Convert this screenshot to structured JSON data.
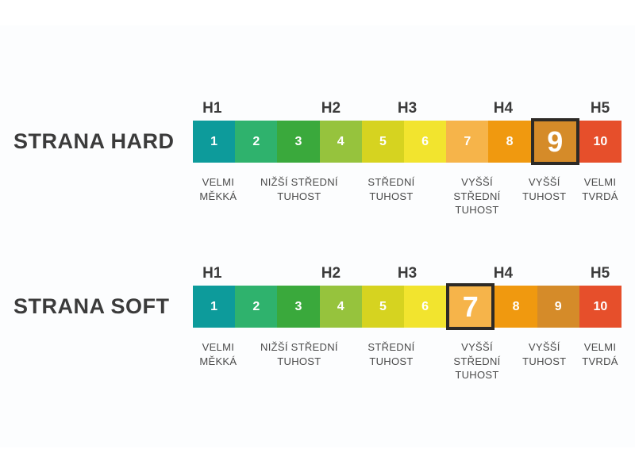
{
  "page": {
    "background": "#ffffff",
    "panel_background": "#fcfdfe"
  },
  "chart": {
    "type": "hardness-scale",
    "scale_values": [
      "1",
      "2",
      "3",
      "4",
      "5",
      "6",
      "7",
      "8",
      "9",
      "10"
    ],
    "cells": [
      {
        "value": "1",
        "color": "#0d9b9b"
      },
      {
        "value": "2",
        "color": "#2fb26d"
      },
      {
        "value": "3",
        "color": "#3aa93c"
      },
      {
        "value": "4",
        "color": "#96c33d"
      },
      {
        "value": "5",
        "color": "#d6d320"
      },
      {
        "value": "6",
        "color": "#f2e42e"
      },
      {
        "value": "7",
        "color": "#f6b44a"
      },
      {
        "value": "8",
        "color": "#f0990f"
      },
      {
        "value": "9",
        "color": "#d58b29"
      },
      {
        "value": "10",
        "color": "#e64f2b"
      }
    ],
    "h_labels": [
      "H1",
      "H2",
      "H3",
      "H4",
      "H5"
    ],
    "descriptions": [
      {
        "text": "VELMI\nMĚKKÁ"
      },
      {
        "text": "NIŽŠÍ STŘEDNÍ\nTUHOST"
      },
      {
        "text": "STŘEDNÍ\nTUHOST"
      },
      {
        "text": "VYŠŠÍ\nSTŘEDNÍ\nTUHOST"
      },
      {
        "text": "VYŠŠÍ\nTUHOST"
      },
      {
        "text": "VELMI\nTVRDÁ"
      }
    ],
    "rows": [
      {
        "title": "STRANA HARD",
        "selected_value": "9"
      },
      {
        "title": "STRANA SOFT",
        "selected_value": "7"
      }
    ],
    "selected_border_color": "#2d2a26",
    "title_color": "#3b3b3b",
    "description_color": "#4a4a4a",
    "number_color": "#ffffff"
  }
}
